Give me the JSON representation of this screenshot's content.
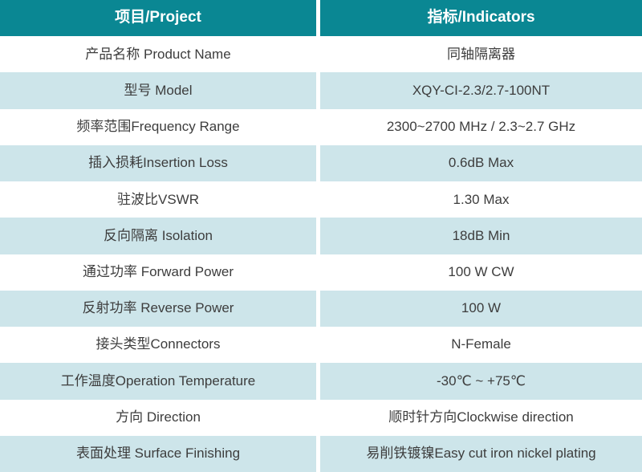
{
  "table": {
    "columns": [
      {
        "label": "项目/Project"
      },
      {
        "label": "指标/Indicators"
      }
    ],
    "rows": [
      {
        "project": "产品名称 Product Name",
        "indicator": "同轴隔离器"
      },
      {
        "project": "型号 Model",
        "indicator": "XQY-CI-2.3/2.7-100NT"
      },
      {
        "project": "频率范围Frequency Range",
        "indicator": "2300~2700 MHz / 2.3~2.7 GHz"
      },
      {
        "project": "插入损耗Insertion Loss",
        "indicator": "0.6dB Max"
      },
      {
        "project": "驻波比VSWR",
        "indicator": "1.30 Max"
      },
      {
        "project": "反向隔离 Isolation",
        "indicator": "18dB Min"
      },
      {
        "project": "通过功率 Forward Power",
        "indicator": "100 W CW"
      },
      {
        "project": "反射功率 Reverse Power",
        "indicator": "100 W"
      },
      {
        "project": "接头类型Connectors",
        "indicator": "N-Female"
      },
      {
        "project": "工作温度Operation Temperature",
        "indicator": "-30℃ ~ +75℃"
      },
      {
        "project": "方向 Direction",
        "indicator": "顺时针方向Clockwise direction"
      },
      {
        "project": "表面处理 Surface Finishing",
        "indicator": "易削铁镀镍Easy cut iron nickel plating"
      }
    ],
    "colors": {
      "header_bg": "#0A8793",
      "header_text": "#FFFFFF",
      "row_bg": "#FFFFFF",
      "row_alt_bg": "#CDE5EA",
      "body_text": "#3D3D3D",
      "divider": "#FFFFFF"
    }
  }
}
